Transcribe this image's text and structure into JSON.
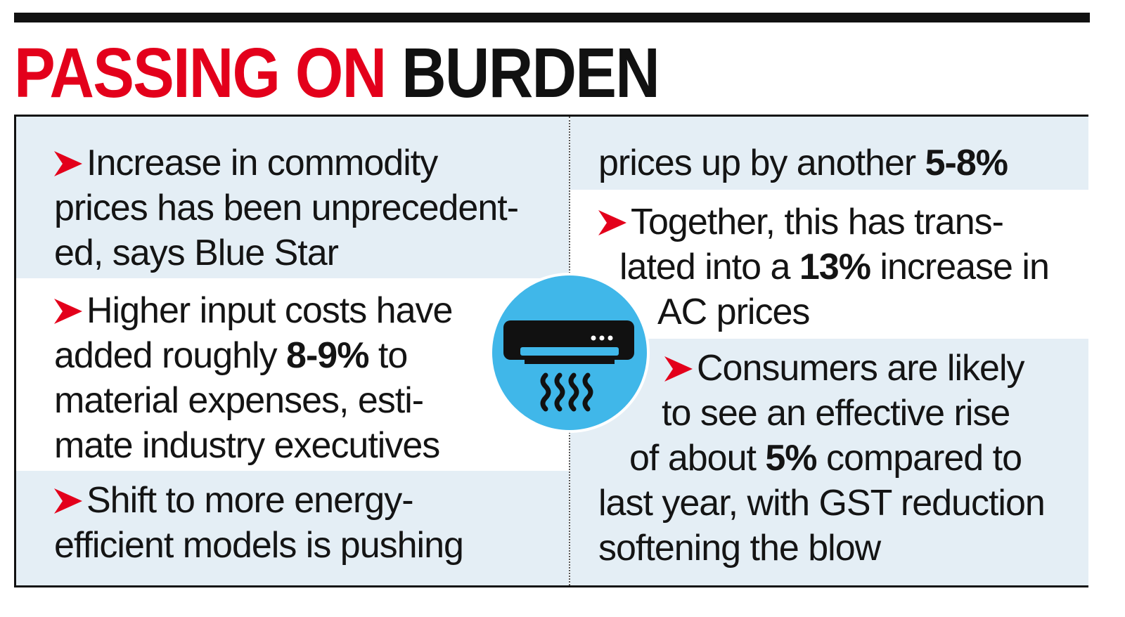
{
  "title": {
    "part_red": "PASSING ON",
    "part_black": "BURDEN"
  },
  "colors": {
    "accent_red": "#e3001b",
    "panel_blue": "#e4eef5",
    "icon_blue": "#40b7e9",
    "text": "#141414"
  },
  "left_column": {
    "b1": {
      "l1": "Increase in commodity",
      "l2": "prices has been unprecedent-",
      "l3": "ed, says Blue Star"
    },
    "b2": {
      "l1": "Higher input costs have",
      "l2_pre": "added roughly ",
      "l2_bold": "8-9%",
      "l2_post": " to",
      "l3": "material expenses, esti-",
      "l4": "mate industry executives"
    },
    "b3": {
      "l1": "Shift to more energy-",
      "l2": "efficient models is pushing"
    }
  },
  "right_column": {
    "b3_cont": {
      "l1_pre": "prices up by another ",
      "l1_bold": "5-8%"
    },
    "b4": {
      "l1": "Together, this has trans-",
      "l2_pre": "lated into a ",
      "l2_bold": "13%",
      "l2_post": " increase in",
      "l3": "AC prices"
    },
    "b5": {
      "l1": "Consumers are likely",
      "l2": "to see an effective rise",
      "l3_pre": "of about ",
      "l3_bold": "5%",
      "l3_post": " compared to",
      "l4": "last year, with GST reduction",
      "l5": "softening the blow"
    }
  },
  "icons": {
    "bullet": "red-arrowhead-icon",
    "center": "air-conditioner-icon"
  }
}
